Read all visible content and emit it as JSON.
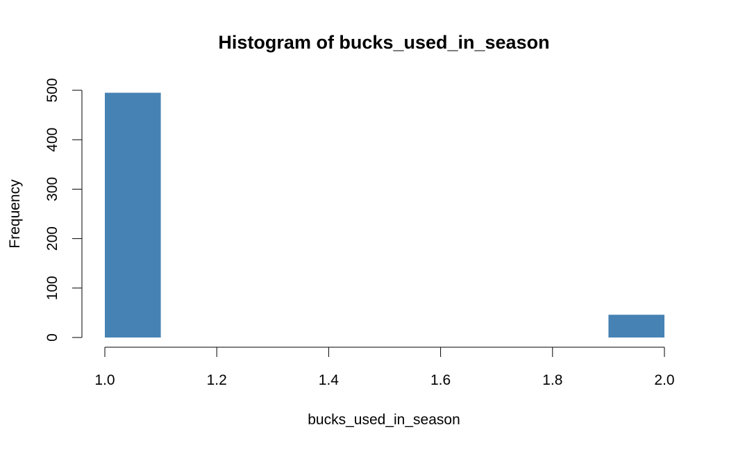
{
  "chart_data": {
    "type": "bar",
    "title": "Histogram of bucks_used_in_season",
    "xlabel": "bucks_used_in_season",
    "ylabel": "Frequency",
    "xlim": [
      1.0,
      2.0
    ],
    "ylim": [
      0,
      500
    ],
    "x_ticks": [
      "1.0",
      "1.2",
      "1.4",
      "1.6",
      "1.8",
      "2.0"
    ],
    "y_ticks": [
      "0",
      "100",
      "200",
      "300",
      "400",
      "500"
    ],
    "bins": [
      {
        "from": 1.0,
        "to": 1.1,
        "value": 495
      },
      {
        "from": 1.9,
        "to": 2.0,
        "value": 46
      }
    ],
    "bar_color": "#4682b4",
    "grid": false
  }
}
